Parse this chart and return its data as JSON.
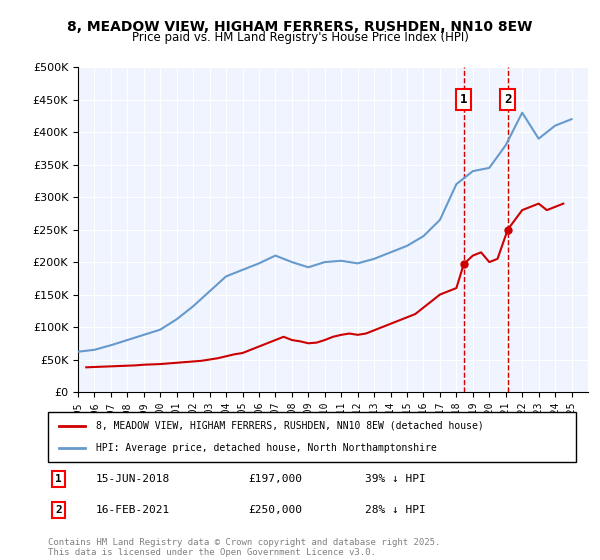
{
  "title_line1": "8, MEADOW VIEW, HIGHAM FERRERS, RUSHDEN, NN10 8EW",
  "title_line2": "Price paid vs. HM Land Registry's House Price Index (HPI)",
  "hpi_label": "HPI: Average price, detached house, North Northamptonshire",
  "property_label": "8, MEADOW VIEW, HIGHAM FERRERS, RUSHDEN, NN10 8EW (detached house)",
  "footnote": "Contains HM Land Registry data © Crown copyright and database right 2025.\nThis data is licensed under the Open Government Licence v3.0.",
  "sale1_date": "15-JUN-2018",
  "sale1_price": "£197,000",
  "sale1_note": "39% ↓ HPI",
  "sale2_date": "16-FEB-2021",
  "sale2_price": "£250,000",
  "sale2_note": "28% ↓ HPI",
  "sale1_year": 2018.45,
  "sale2_year": 2021.12,
  "property_color": "#cc0000",
  "hpi_color": "#6699cc",
  "vline_color": "#cc0000",
  "background_color": "#f0f4ff",
  "ylim": [
    0,
    500000
  ],
  "yticks": [
    0,
    50000,
    100000,
    150000,
    200000,
    250000,
    300000,
    350000,
    400000,
    450000,
    500000
  ],
  "xmin": 1995,
  "xmax": 2026,
  "hpi_years": [
    1995,
    1996,
    1997,
    1998,
    1999,
    2000,
    2001,
    2002,
    2003,
    2004,
    2005,
    2006,
    2007,
    2008,
    2009,
    2010,
    2011,
    2012,
    2013,
    2014,
    2015,
    2016,
    2017,
    2018,
    2019,
    2020,
    2021,
    2022,
    2023,
    2024,
    2025
  ],
  "hpi_values": [
    62000,
    65000,
    72000,
    80000,
    88000,
    96000,
    112000,
    132000,
    155000,
    178000,
    188000,
    198000,
    210000,
    200000,
    192000,
    200000,
    202000,
    198000,
    205000,
    215000,
    225000,
    240000,
    265000,
    320000,
    340000,
    345000,
    380000,
    430000,
    390000,
    410000,
    420000
  ],
  "property_years": [
    1995.5,
    1996.0,
    1996.5,
    1997.0,
    1997.5,
    1998.0,
    1998.5,
    1999.0,
    1999.5,
    2000.0,
    2000.5,
    2001.0,
    2001.5,
    2002.0,
    2002.5,
    2003.0,
    2003.5,
    2004.0,
    2004.5,
    2005.0,
    2005.5,
    2006.0,
    2006.5,
    2007.0,
    2007.5,
    2008.0,
    2008.5,
    2009.0,
    2009.5,
    2010.0,
    2010.5,
    2011.0,
    2011.5,
    2012.0,
    2012.5,
    2013.0,
    2013.5,
    2014.0,
    2014.5,
    2015.0,
    2015.5,
    2016.0,
    2016.5,
    2017.0,
    2017.5,
    2018.0,
    2018.45,
    2019.0,
    2019.5,
    2020.0,
    2020.5,
    2021.12,
    2022.0,
    2022.5,
    2023.0,
    2023.5,
    2024.0,
    2024.5
  ],
  "property_values": [
    38000,
    38500,
    39000,
    39500,
    40000,
    40500,
    41000,
    42000,
    42500,
    43000,
    44000,
    45000,
    46000,
    47000,
    48000,
    50000,
    52000,
    55000,
    58000,
    60000,
    65000,
    70000,
    75000,
    80000,
    85000,
    80000,
    78000,
    75000,
    76000,
    80000,
    85000,
    88000,
    90000,
    88000,
    90000,
    95000,
    100000,
    105000,
    110000,
    115000,
    120000,
    130000,
    140000,
    150000,
    155000,
    160000,
    197000,
    210000,
    215000,
    200000,
    205000,
    250000,
    280000,
    285000,
    290000,
    280000,
    285000,
    290000
  ]
}
